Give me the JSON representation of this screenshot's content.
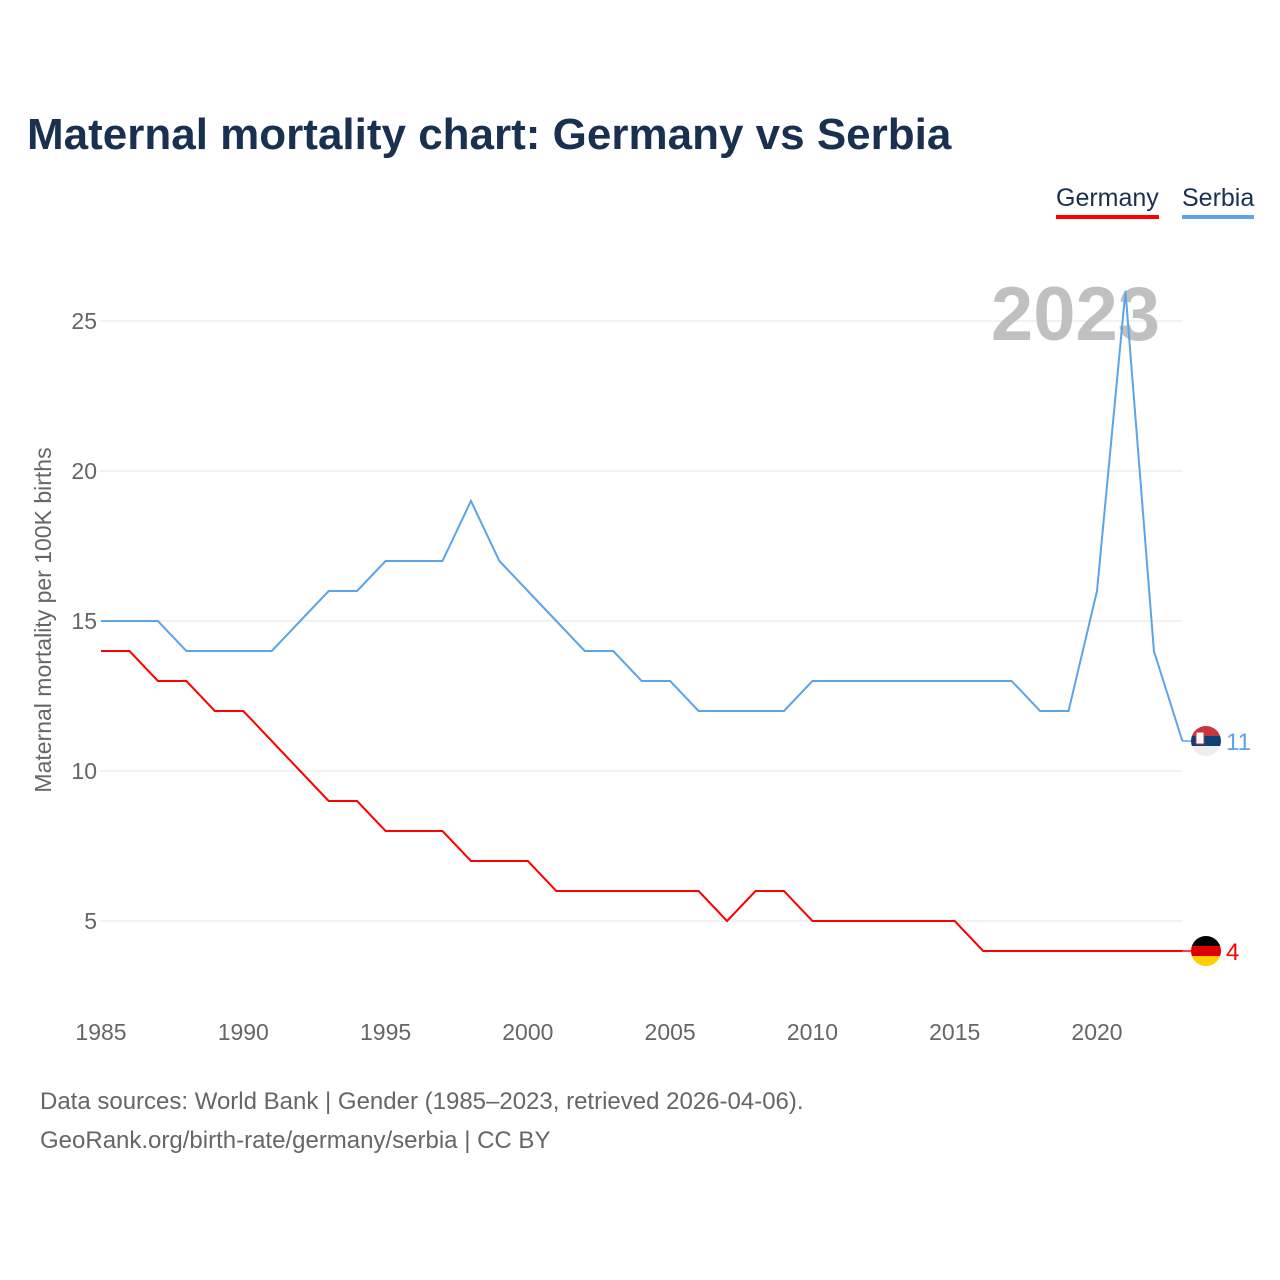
{
  "title": "Maternal mortality chart: Germany vs Serbia",
  "legend": {
    "germany": "Germany",
    "serbia": "Serbia"
  },
  "footer": {
    "line1": "Data sources: World Bank | Gender (1985–2023, retrieved 2026-04-06).",
    "line2": "GeoRank.org/birth-rate/germany/serbia | CC BY"
  },
  "chart_data": {
    "type": "line",
    "title": "Maternal mortality chart: Germany vs Serbia",
    "ylabel": "Maternal mortality per 100K births",
    "xlabel": "",
    "year_label": "2023",
    "x": [
      1985,
      1986,
      1987,
      1988,
      1989,
      1990,
      1991,
      1992,
      1993,
      1994,
      1995,
      1996,
      1997,
      1998,
      1999,
      2000,
      2001,
      2002,
      2003,
      2004,
      2005,
      2006,
      2007,
      2008,
      2009,
      2010,
      2011,
      2012,
      2013,
      2014,
      2015,
      2016,
      2017,
      2018,
      2019,
      2020,
      2021,
      2022,
      2023
    ],
    "xticks": [
      1985,
      1990,
      1995,
      2000,
      2005,
      2010,
      2015,
      2020
    ],
    "yticks": [
      5,
      10,
      15,
      20,
      25
    ],
    "xlim": [
      1985,
      2023
    ],
    "ylim": [
      2.5,
      27
    ],
    "grid": true,
    "legend_position": "top-right",
    "series": [
      {
        "name": "Germany",
        "color": "#ff0000",
        "end_label": "4",
        "values": [
          14,
          14,
          13,
          13,
          12,
          12,
          11,
          10,
          9,
          9,
          8,
          8,
          8,
          7,
          7,
          7,
          6,
          6,
          6,
          6,
          6,
          6,
          5,
          6,
          6,
          5,
          5,
          5,
          5,
          5,
          5,
          4,
          4,
          4,
          4,
          4,
          4,
          4,
          4
        ]
      },
      {
        "name": "Serbia",
        "color": "#5ba4e8",
        "end_label": "11",
        "values": [
          15,
          15,
          15,
          14,
          14,
          14,
          14,
          15,
          16,
          16,
          17,
          17,
          17,
          19,
          17,
          16,
          15,
          14,
          14,
          13,
          13,
          12,
          12,
          12,
          12,
          13,
          13,
          13,
          13,
          13,
          13,
          13,
          13,
          12,
          12,
          16,
          26,
          14,
          11
        ]
      }
    ]
  }
}
